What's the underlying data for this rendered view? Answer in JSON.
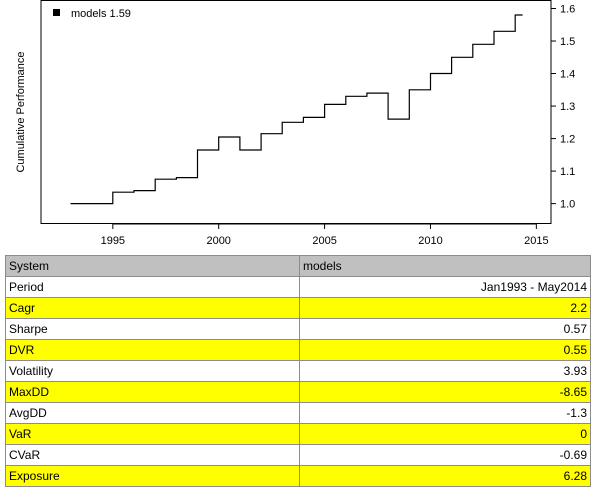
{
  "chart_data": {
    "type": "line",
    "title": "",
    "xlabel": "",
    "ylabel": "Cumulative Performance",
    "xlim": [
      1992.6,
      2014.7
    ],
    "ylim": [
      0.985,
      1.6
    ],
    "x_ticks": [
      1995,
      2000,
      2005,
      2010,
      2015
    ],
    "y_ticks": [
      1.0,
      1.1,
      1.2,
      1.3,
      1.4,
      1.5,
      1.6
    ],
    "y_tick_labels": [
      "1.0",
      "1.1",
      "1.2",
      "1.3",
      "1.4",
      "1.5",
      "1.6"
    ],
    "grid": false,
    "legend": {
      "position": "top-left",
      "entries": [
        "models 1.59"
      ]
    },
    "series": [
      {
        "name": "models",
        "color": "#000000",
        "x": [
          1993.0,
          1994.0,
          1994.0,
          1995.0,
          1995.0,
          1996.0,
          1996.0,
          1997.0,
          1997.0,
          1998.0,
          1998.0,
          1999.0,
          1999.0,
          2000.0,
          2000.0,
          2001.0,
          2001.0,
          2002.0,
          2002.0,
          2003.0,
          2003.0,
          2004.0,
          2004.0,
          2005.0,
          2005.0,
          2006.0,
          2006.0,
          2007.0,
          2007.0,
          2008.0,
          2008.0,
          2009.0,
          2009.0,
          2010.0,
          2010.0,
          2011.0,
          2011.0,
          2012.0,
          2012.0,
          2013.0,
          2013.0,
          2014.0,
          2014.0,
          2014.35
        ],
        "y": [
          1.0,
          1.0,
          1.0,
          1.0,
          1.035,
          1.035,
          1.04,
          1.04,
          1.075,
          1.075,
          1.08,
          1.08,
          1.165,
          1.165,
          1.205,
          1.205,
          1.165,
          1.165,
          1.215,
          1.215,
          1.25,
          1.25,
          1.265,
          1.265,
          1.305,
          1.305,
          1.33,
          1.33,
          1.34,
          1.34,
          1.26,
          1.26,
          1.35,
          1.35,
          1.4,
          1.4,
          1.45,
          1.45,
          1.49,
          1.49,
          1.53,
          1.53,
          1.58,
          1.58
        ]
      }
    ]
  },
  "table": {
    "header": [
      "System",
      "models"
    ],
    "rows": [
      {
        "label": "Period",
        "value": "Jan1993 - May2014",
        "highlight": false
      },
      {
        "label": "Cagr",
        "value": "2.2",
        "highlight": true
      },
      {
        "label": "Sharpe",
        "value": "0.57",
        "highlight": false
      },
      {
        "label": "DVR",
        "value": "0.55",
        "highlight": true
      },
      {
        "label": "Volatility",
        "value": "3.93",
        "highlight": false
      },
      {
        "label": "MaxDD",
        "value": "-8.65",
        "highlight": true
      },
      {
        "label": "AvgDD",
        "value": "-1.3",
        "highlight": false
      },
      {
        "label": "VaR",
        "value": "0",
        "highlight": true
      },
      {
        "label": "CVaR",
        "value": "-0.69",
        "highlight": false
      },
      {
        "label": "Exposure",
        "value": "6.28",
        "highlight": true
      }
    ]
  },
  "colors": {
    "highlight": "#ffff00",
    "header": "#c0c0c0",
    "line": "#000000"
  }
}
